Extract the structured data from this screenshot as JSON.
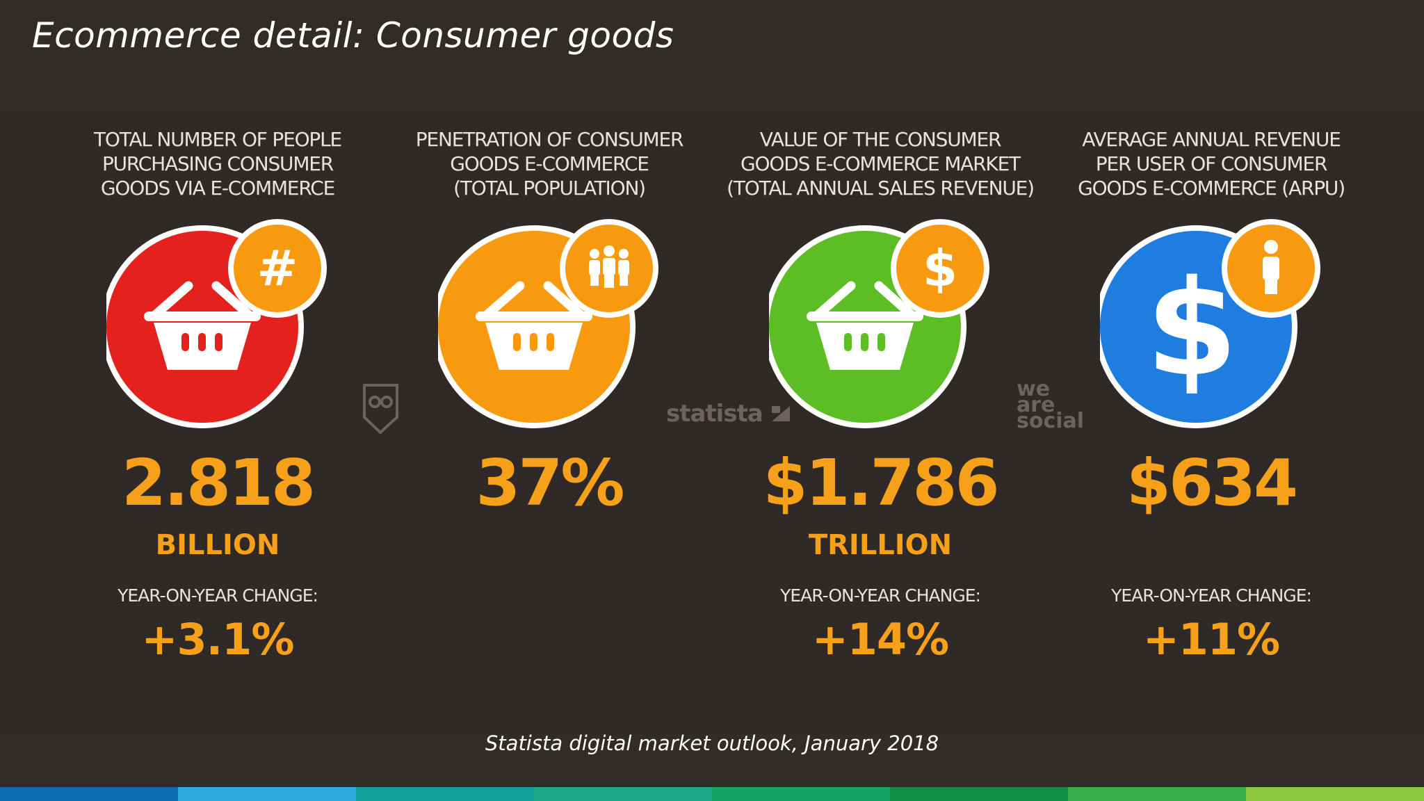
{
  "slide": {
    "title": "Ecommerce detail: Consumer goods",
    "source": "Statista digital market outlook, January 2018"
  },
  "watermarks": {
    "statista": "statista",
    "social_line1": "we",
    "social_line2": "are",
    "social_line3": "social"
  },
  "colors": {
    "background": "#322c29",
    "accent_orange": "#f7a11a",
    "circle_red": "#e5211e",
    "circle_orange": "#f79a0f",
    "circle_green": "#5cbd24",
    "circle_blue": "#1f7de0",
    "footer_segments": [
      "#0a6fb3",
      "#2fa8e0",
      "#139f9a",
      "#1aa88a",
      "#15a463",
      "#0f8e45",
      "#3aae4a",
      "#8dc63f"
    ]
  },
  "stats": [
    {
      "header": [
        "TOTAL NUMBER OF PEOPLE",
        "PURCHASING CONSUMER",
        "GOODS VIA E-COMMERCE"
      ],
      "icon": "basket-icon",
      "badge_icon": "hash-icon",
      "value": "2.818",
      "unit": "BILLION",
      "yoy_label": "YEAR-ON-YEAR CHANGE:",
      "yoy_value": "+3.1%"
    },
    {
      "header": [
        "PENETRATION OF CONSUMER",
        "GOODS E-COMMERCE",
        "(TOTAL POPULATION)"
      ],
      "icon": "basket-icon",
      "badge_icon": "people-icon",
      "value": "37%",
      "unit": "",
      "yoy_label": "",
      "yoy_value": ""
    },
    {
      "header": [
        "VALUE OF THE CONSUMER",
        "GOODS E-COMMERCE MARKET",
        "(TOTAL ANNUAL SALES REVENUE)"
      ],
      "icon": "basket-icon",
      "badge_icon": "dollar-icon",
      "value": "$1.786",
      "unit": "TRILLION",
      "yoy_label": "YEAR-ON-YEAR CHANGE:",
      "yoy_value": "+14%"
    },
    {
      "header": [
        "AVERAGE ANNUAL REVENUE",
        "PER USER OF CONSUMER",
        "GOODS E-COMMERCE (ARPU)"
      ],
      "icon": "dollar-icon",
      "badge_icon": "person-icon",
      "value": "$634",
      "unit": "",
      "yoy_label": "YEAR-ON-YEAR CHANGE:",
      "yoy_value": "+11%"
    }
  ]
}
